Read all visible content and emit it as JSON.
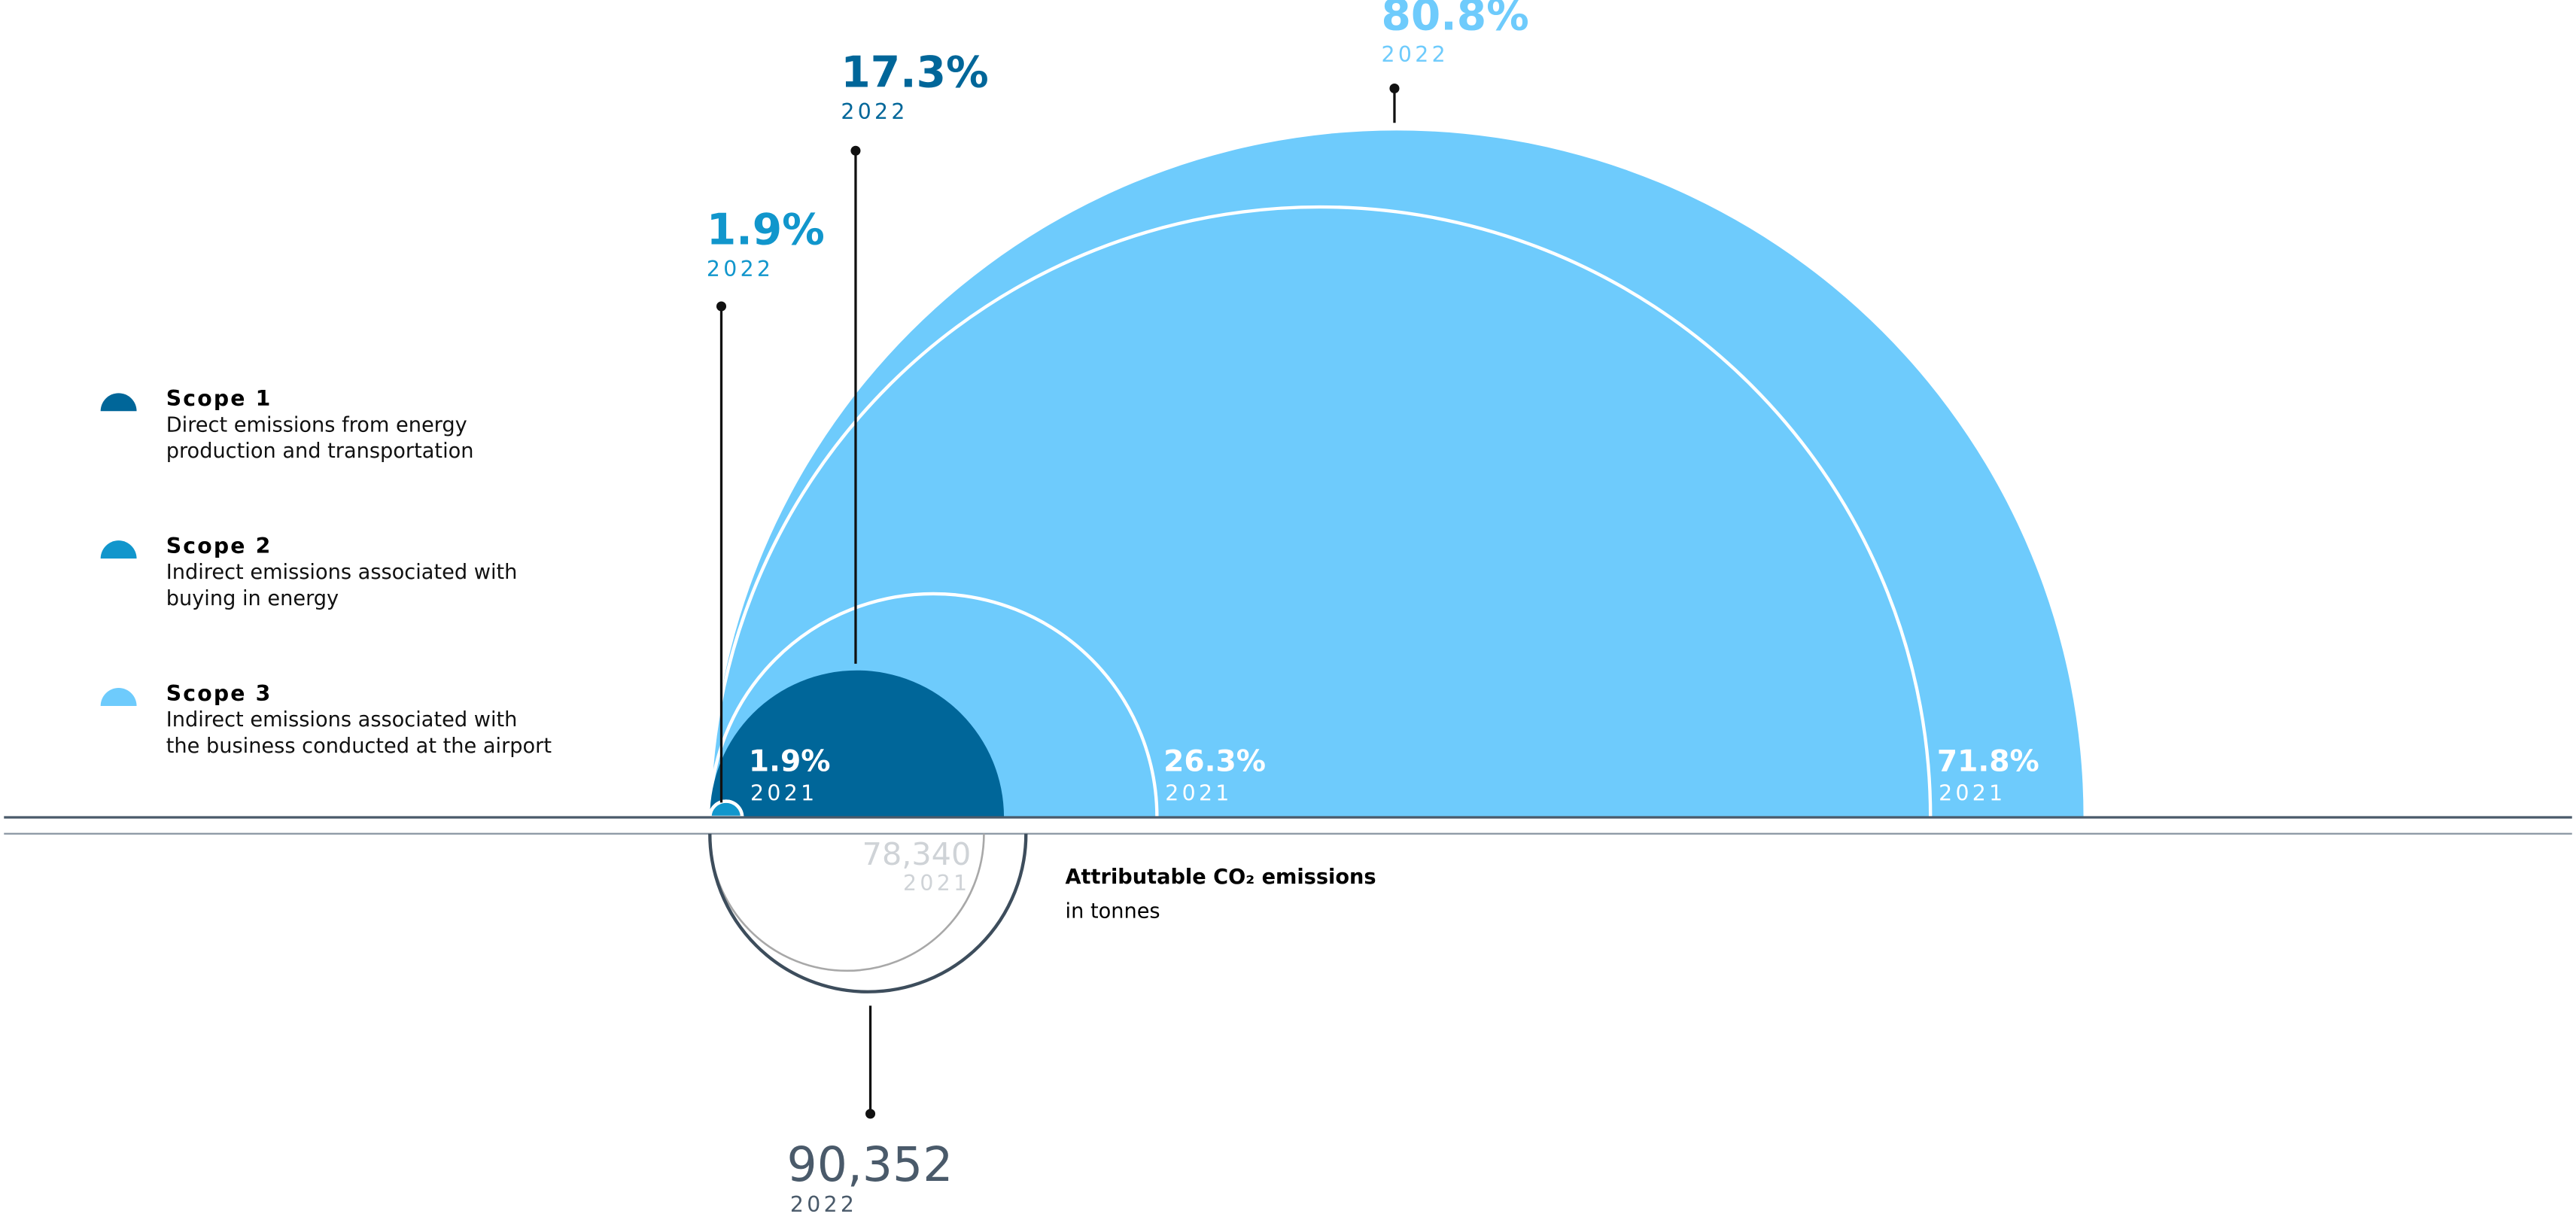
{
  "chart_data": {
    "type": "semicircle",
    "categories": [
      "2022",
      "2021"
    ],
    "series": [
      {
        "name": "Scope 1",
        "description": [
          "Direct emissions from energy",
          "production and transportation"
        ],
        "color": "#006699",
        "values": [
          17.3,
          26.3
        ],
        "value_labels": [
          "17.3%",
          "26.3%"
        ]
      },
      {
        "name": "Scope 2",
        "description": [
          "Indirect emissions associated with",
          "buying in energy"
        ],
        "color": "#1196cc",
        "values": [
          1.9,
          1.9
        ],
        "value_labels": [
          "1.9%",
          "1.9%"
        ]
      },
      {
        "name": "Scope 3",
        "description": [
          "Indirect emissions associated with",
          "the business conducted at the airport"
        ],
        "color": "#6ecbfc",
        "values": [
          80.8,
          71.8
        ],
        "value_labels": [
          "80.8%",
          "71.8%"
        ]
      }
    ],
    "total": {
      "title": "Attributable CO₂ emissions",
      "subtitle": "in tonnes",
      "values": [
        90352,
        78340
      ],
      "value_labels": [
        "90,352",
        "78,340"
      ]
    }
  }
}
